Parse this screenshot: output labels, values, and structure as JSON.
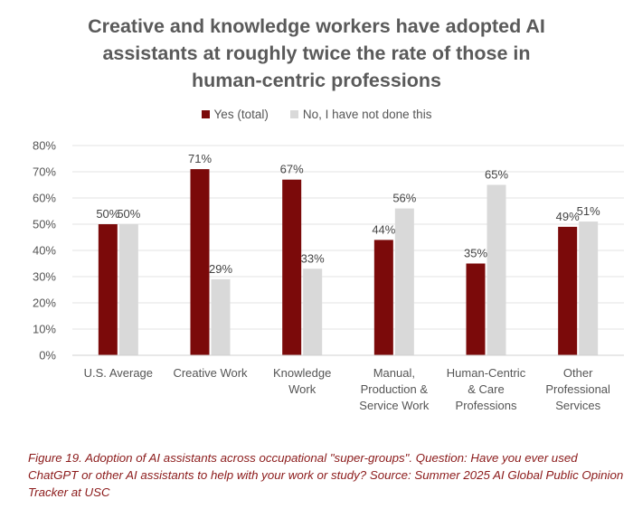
{
  "title_lines": [
    "Creative and knowledge workers have adopted AI",
    "assistants at roughly twice the rate of those in",
    "human-centric professions"
  ],
  "caption": "Figure 19. Adoption of AI assistants across occupational \"super-groups\". Question: Have you ever used ChatGPT or other AI assistants to help with your work or study? Source: Summer 2025 AI Global Public Opinion Tracker at USC",
  "colors": {
    "yes": "#7b0a0a",
    "no": "#d9d9d9",
    "grid": "#e3e3e3",
    "axis_text": "#555555"
  },
  "chart_data": {
    "type": "bar",
    "title": "Creative and knowledge workers have adopted AI assistants at roughly twice the rate of those in human-centric professions",
    "categories": [
      [
        "U.S. Average"
      ],
      [
        "Creative Work"
      ],
      [
        "Knowledge",
        "Work"
      ],
      [
        "Manual,",
        "Production &",
        "Service Work"
      ],
      [
        "Human-Centric",
        "& Care",
        "Professions"
      ],
      [
        "Other",
        "Professional",
        "Services"
      ]
    ],
    "series": [
      {
        "name": "Yes (total)",
        "values": [
          50,
          71,
          67,
          44,
          35,
          49
        ],
        "labels": [
          "50%",
          "71%",
          "67%",
          "44%",
          "35%",
          "49%"
        ]
      },
      {
        "name": "No, I have not done this",
        "values": [
          50,
          29,
          33,
          56,
          65,
          51
        ],
        "labels": [
          "50%",
          "29%",
          "33%",
          "56%",
          "65%",
          "51%"
        ]
      }
    ],
    "yticks": [
      "0%",
      "10%",
      "20%",
      "30%",
      "40%",
      "50%",
      "60%",
      "70%",
      "80%"
    ],
    "ylim": [
      0,
      80
    ],
    "grid": true,
    "legend_position": "top-center"
  }
}
